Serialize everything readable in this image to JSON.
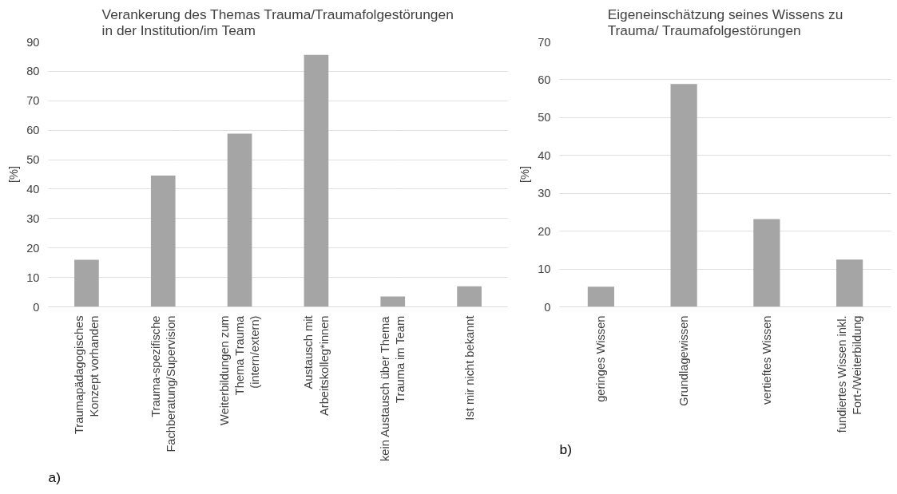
{
  "chart_data": [
    {
      "type": "bar",
      "title": "Verankerung des Themas Trauma/Traumafolgestörungen\nin der Institution/im Team",
      "ylabel": "[%]",
      "categories": [
        "Traumapädagogisches\nKonzept vorhanden",
        "Trauma-spezifische\nFachberatung/Supervision",
        "Weiterbildungen zum\nThema Trauma\n(intern/extern)",
        "Austausch mit\nArbeitskolleg*innen",
        "kein Austausch über Thema\nTrauma im Team",
        "Ist mir nicht bekannt"
      ],
      "values": [
        16.0,
        44.6,
        58.8,
        85.6,
        3.5,
        7.0
      ],
      "color": "#a5a5a5",
      "ylim": [
        0,
        90
      ],
      "yticks": [
        0,
        10,
        20,
        30,
        40,
        50,
        60,
        70,
        80,
        90
      ],
      "grid": "y",
      "annotations": [
        "a)"
      ]
    },
    {
      "type": "bar",
      "title": "Eigeneinschätzung seines Wissens zu\nTrauma/ Traumafolgestörungen",
      "ylabel": "[%]",
      "categories": [
        "geringes Wissen",
        "Grundlagewissen",
        "vertieftes Wissen",
        "fundiertes Wissen inkl.\nFort-/Weiterbildung"
      ],
      "values": [
        5.3,
        58.9,
        23.2,
        12.5
      ],
      "color": "#a5a5a5",
      "ylim": [
        0,
        70
      ],
      "yticks": [
        0,
        10,
        20,
        30,
        40,
        50,
        60,
        70
      ],
      "grid": "y",
      "annotations": [
        "b)"
      ]
    }
  ]
}
